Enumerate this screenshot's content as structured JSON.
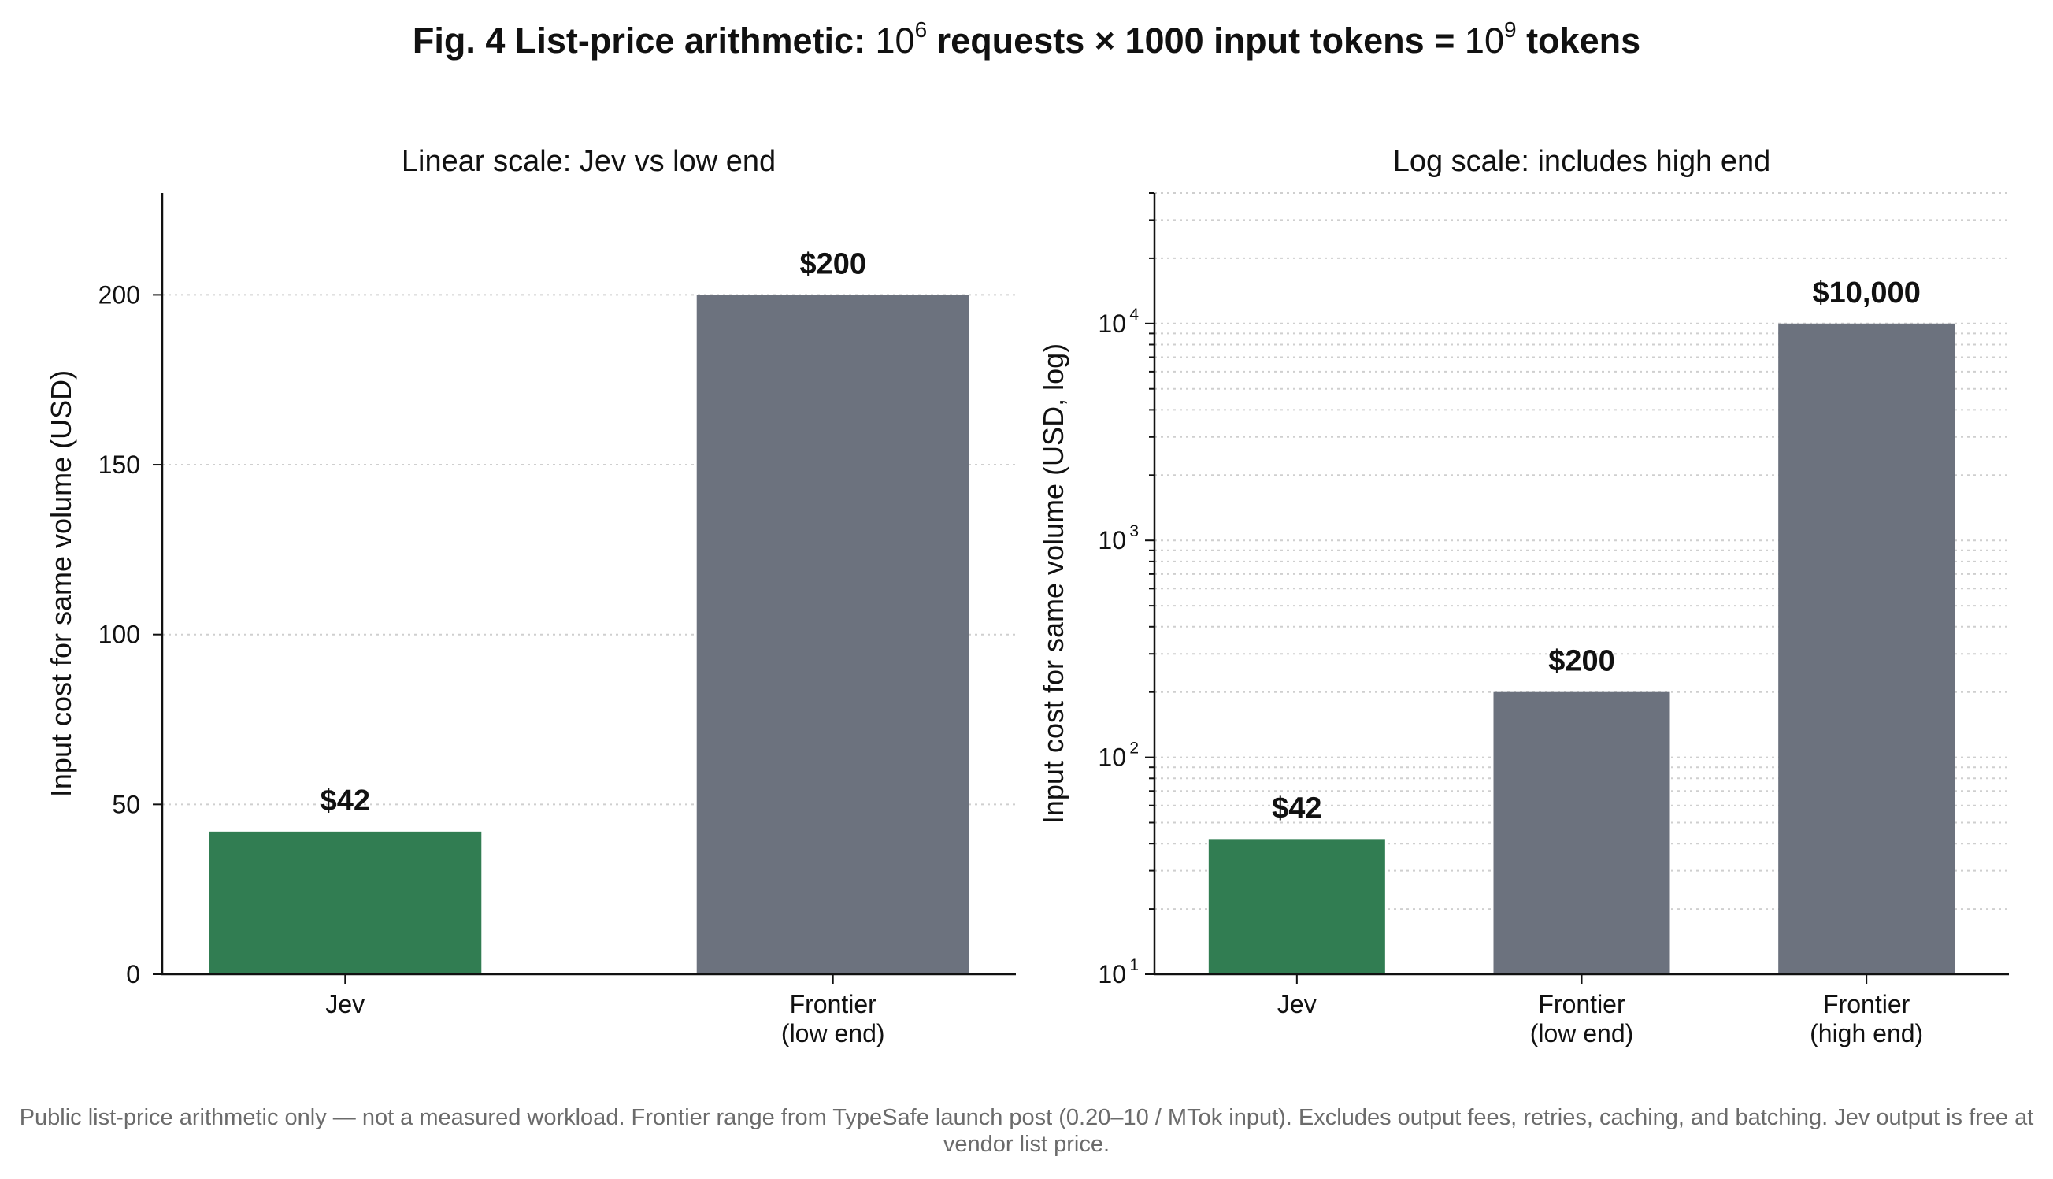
{
  "figure": {
    "title_prefix": "Fig. 4  List-price arithmetic: ",
    "title_base1": "10",
    "title_exp1": "6",
    "title_middle": " requests × 1000 input tokens = ",
    "title_base2": "10",
    "title_exp2": "9",
    "title_suffix": " tokens",
    "caption": "Public list-price arithmetic only — not a measured workload. Frontier range from TypeSafe launch post (0.20–10 / MTok input). Excludes output fees, retries, caching, and batching. Jev output is free at vendor list price."
  },
  "colors": {
    "jev": "#317d52",
    "frontier": "#6c727e",
    "grid": "#cfcfcf",
    "axis": "#111111"
  },
  "chart_data": [
    {
      "type": "bar",
      "title": "Linear scale: Jev vs low end",
      "ylabel": "Input cost for same volume (USD)",
      "xlabel": "",
      "yscale": "linear",
      "ylim": [
        0,
        230
      ],
      "yticks": [
        0,
        50,
        100,
        150,
        200
      ],
      "grid": "y-dotted",
      "categories": [
        [
          "Jev"
        ],
        [
          "Frontier",
          "(low end)"
        ]
      ],
      "values": [
        42,
        200
      ],
      "value_labels": [
        "$42",
        "$200"
      ],
      "bar_colors": [
        "jev",
        "frontier"
      ]
    },
    {
      "type": "bar",
      "title": "Log scale: includes high end",
      "ylabel": "Input cost for same volume (USD, log)",
      "xlabel": "",
      "yscale": "log",
      "ylim": [
        10,
        40000
      ],
      "yticks": [
        10,
        100,
        1000,
        10000
      ],
      "ytick_labels": [
        [
          "10",
          "1"
        ],
        [
          "10",
          "2"
        ],
        [
          "10",
          "3"
        ],
        [
          "10",
          "4"
        ]
      ],
      "grid": "y-dotted-minor",
      "categories": [
        [
          "Jev"
        ],
        [
          "Frontier",
          "(low end)"
        ],
        [
          "Frontier",
          "(high end)"
        ]
      ],
      "values": [
        42,
        200,
        10000
      ],
      "value_labels": [
        "$42",
        "$200",
        "$10,000"
      ],
      "bar_colors": [
        "jev",
        "frontier",
        "frontier"
      ]
    }
  ]
}
